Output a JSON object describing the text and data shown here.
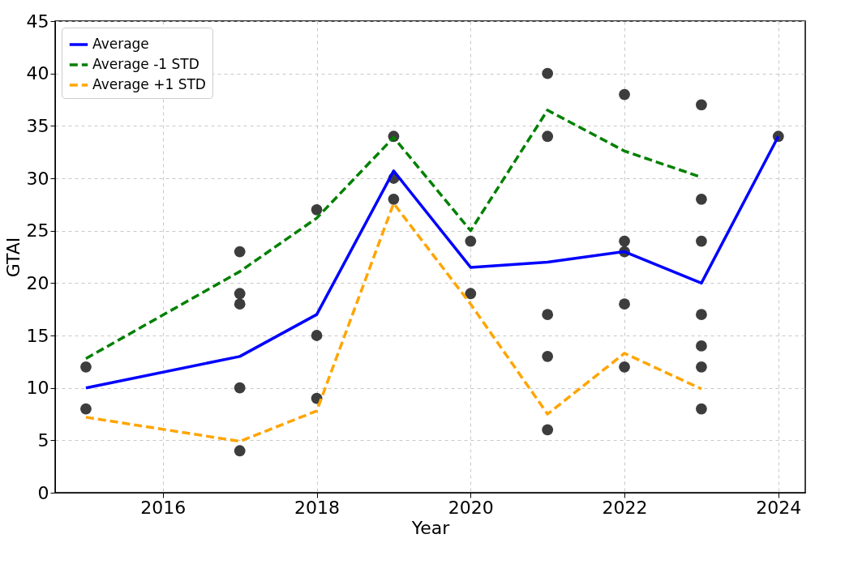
{
  "chart_data": {
    "type": "line",
    "xlabel": "Year",
    "ylabel": "GTAI",
    "xlim": [
      2014.6,
      2024.35
    ],
    "xticks": [
      2016,
      2018,
      2020,
      2022,
      2024
    ],
    "ylim": [
      0,
      45
    ],
    "yticks": [
      0,
      5,
      10,
      15,
      20,
      25,
      30,
      35,
      40,
      45
    ],
    "grid": true,
    "legend": "top left",
    "series": [
      {
        "type": "scatter",
        "color": "#333333",
        "marker": "circle",
        "x": [
          2015,
          2015,
          2017,
          2017,
          2017,
          2017,
          2017,
          2018,
          2018,
          2018,
          2019,
          2019,
          2019,
          2020,
          2020,
          2021,
          2021,
          2021,
          2021,
          2021,
          2022,
          2022,
          2022,
          2022,
          2022,
          2023,
          2023,
          2023,
          2023,
          2023,
          2023,
          2023,
          2024
        ],
        "values": [
          12,
          8,
          23,
          19,
          18,
          10,
          4,
          27,
          15,
          9,
          34,
          30,
          28,
          24,
          19,
          40,
          34,
          17,
          13,
          6,
          38,
          24,
          23,
          18,
          12,
          37,
          28,
          24,
          17,
          14,
          12,
          8,
          34
        ]
      },
      {
        "name": "Average",
        "color": "#0000ff",
        "line_style": "solid",
        "x": [
          2015,
          2017,
          2018,
          2019,
          2020,
          2021,
          2022,
          2023,
          2024
        ],
        "values": [
          10,
          13,
          17,
          30.7,
          21.5,
          22,
          23,
          20,
          34
        ]
      },
      {
        "name": "Average -1 STD",
        "color": "#008000",
        "line_style": "dashed",
        "x": [
          2015,
          2017,
          2018,
          2019,
          2020,
          2021,
          2022,
          2023
        ],
        "values": [
          12.8,
          21.1,
          26.2,
          33.9,
          25.0,
          36.5,
          32.6,
          30.1
        ]
      },
      {
        "name": "Average +1 STD",
        "color": "#ffa500",
        "line_style": "dashed",
        "x": [
          2015,
          2017,
          2018,
          2019,
          2020,
          2021,
          2022,
          2023
        ],
        "values": [
          7.2,
          4.9,
          7.8,
          27.6,
          18.0,
          7.5,
          13.3,
          9.9
        ]
      }
    ]
  }
}
